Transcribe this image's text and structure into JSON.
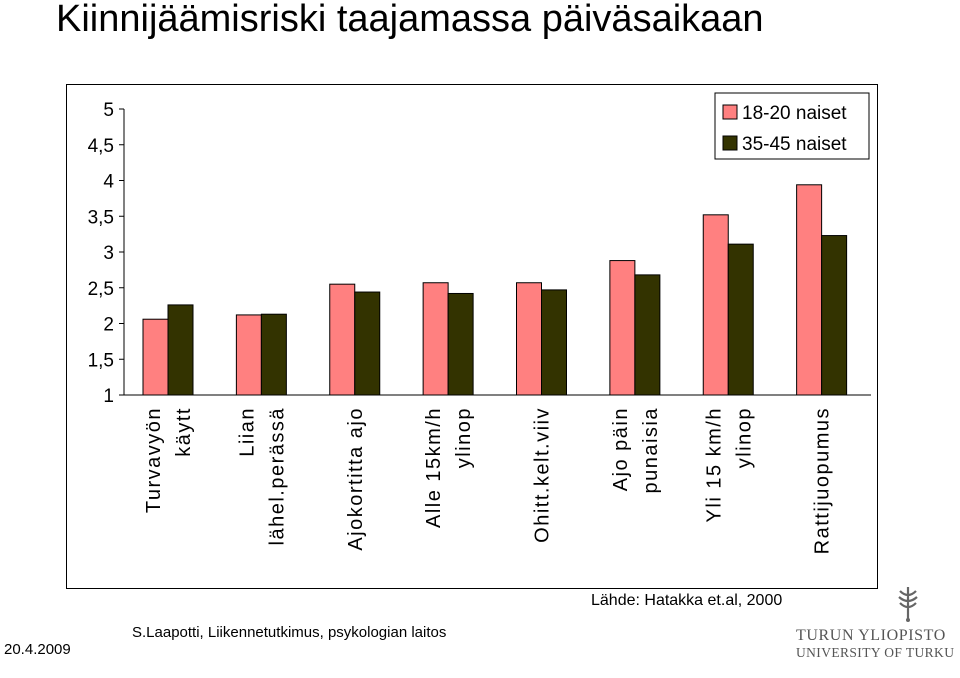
{
  "header": {
    "title": "Kiinnijäämisriski taajamassa päiväsaikaan"
  },
  "footer": {
    "source": "Lähde: Hatakka et.al, 2000",
    "author": "S.Laapotti, Liikennetutkimus, psykologian laitos",
    "date": "20.4.2009",
    "university_line1": "TURUN YLIOPISTO",
    "university_line2": "UNIVERSITY OF TURKU"
  },
  "colors": {
    "series_1": "#ff8080",
    "series_2": "#333300"
  },
  "chart_data": {
    "type": "bar",
    "title": "Kiinnijäämisriski taajamassa päiväsaikaan",
    "xlabel": "",
    "ylabel": "",
    "ylim": [
      1,
      5
    ],
    "yticks": [
      "5",
      "4,5",
      "4",
      "3,5",
      "3",
      "2,5",
      "2",
      "1,5",
      "1"
    ],
    "ytick_values": [
      5,
      4.5,
      4,
      3.5,
      3,
      2.5,
      2,
      1.5,
      1
    ],
    "grid": false,
    "legend_position": "top-right",
    "categories": [
      [
        "Turvavyön",
        "käytt"
      ],
      [
        "Liian",
        "lähel.perässä"
      ],
      [
        "Ajokortitta ajo"
      ],
      [
        "Alle 15km/h",
        "ylinop"
      ],
      [
        "Ohitt.kelt.viiv"
      ],
      [
        "Ajo päin",
        "punaisia"
      ],
      [
        "Yli 15 km/h",
        "ylinop"
      ],
      [
        "Rattijuopumus"
      ]
    ],
    "series": [
      {
        "name": "18-20 naiset",
        "values": [
          2.06,
          2.12,
          2.55,
          2.57,
          2.57,
          2.88,
          3.52,
          3.94
        ]
      },
      {
        "name": "35-45 naiset",
        "values": [
          2.26,
          2.13,
          2.44,
          2.42,
          2.47,
          2.68,
          3.11,
          3.23
        ]
      }
    ]
  }
}
